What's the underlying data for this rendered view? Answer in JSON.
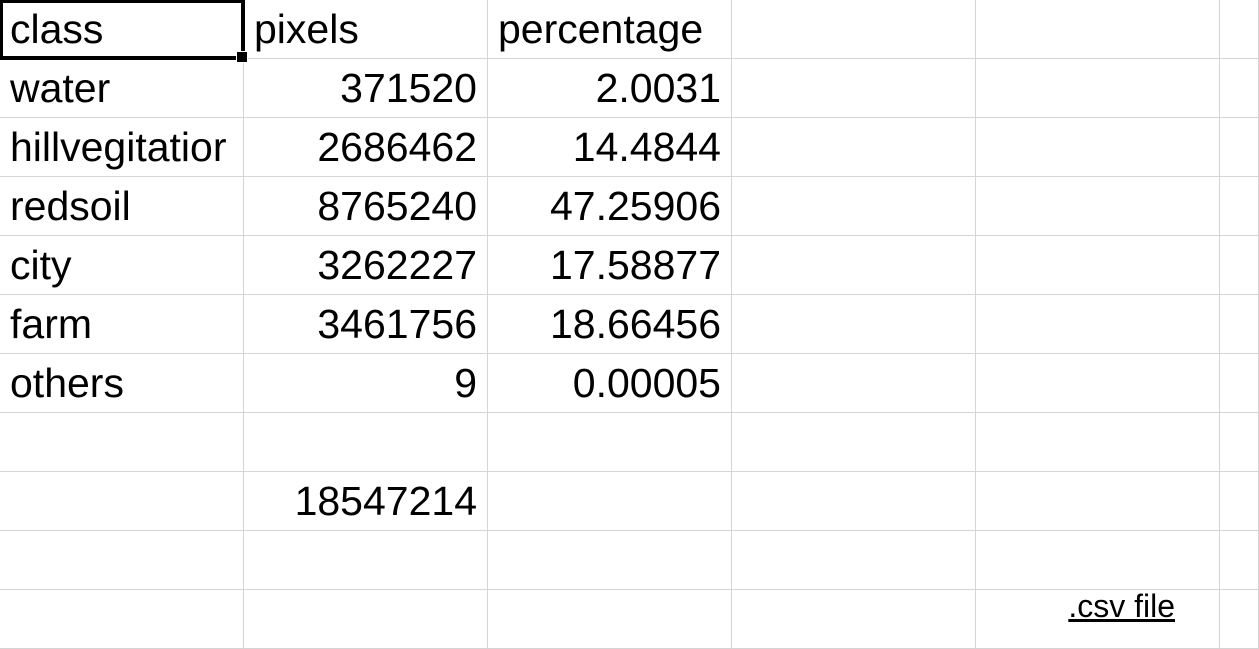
{
  "header": {
    "col1": "class",
    "col2": "pixels",
    "col3": "percentage"
  },
  "rows": [
    {
      "class": "water",
      "pixels": "371520",
      "percentage": "2.0031"
    },
    {
      "class": "hillvegitatior",
      "pixels": "2686462",
      "percentage": "14.4844"
    },
    {
      "class": "redsoil",
      "pixels": "8765240",
      "percentage": "47.25906"
    },
    {
      "class": "city",
      "pixels": "3262227",
      "percentage": "17.58877"
    },
    {
      "class": "farm",
      "pixels": "3461756",
      "percentage": "18.66456"
    },
    {
      "class": "others",
      "pixels": "9",
      "percentage": "0.00005"
    }
  ],
  "total": {
    "pixels": "18547214"
  },
  "annotation": {
    "text": ".csv file"
  }
}
